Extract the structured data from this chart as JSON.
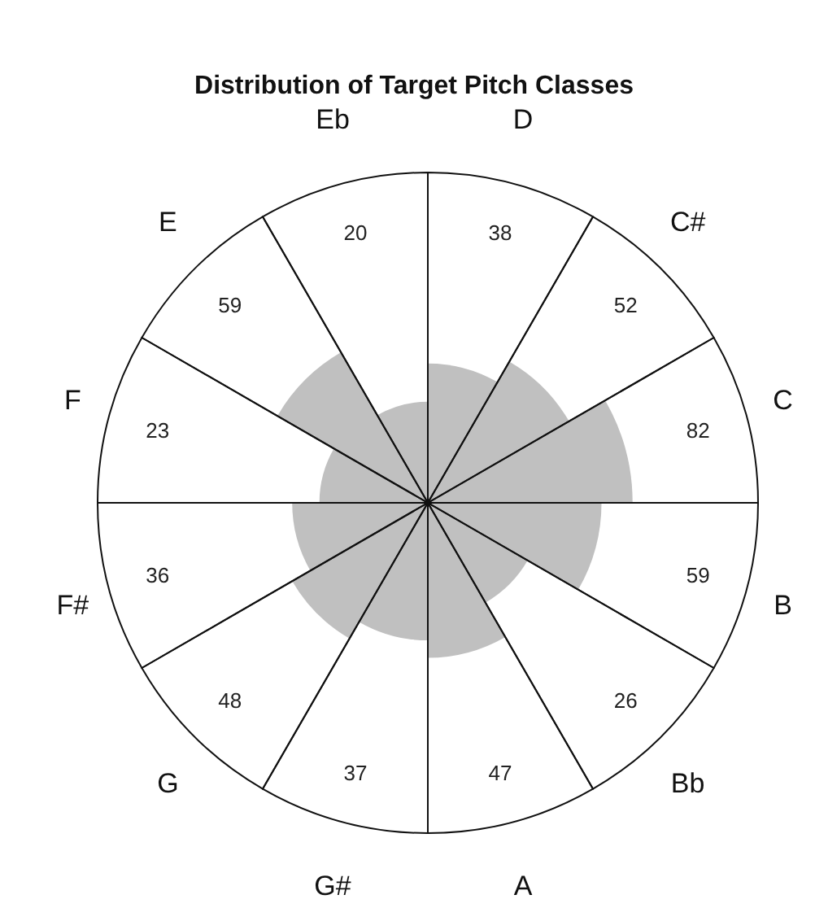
{
  "chart_data": {
    "type": "other",
    "title": "Distribution of Target Pitch Classes",
    "categories": [
      "D",
      "C#",
      "C",
      "B",
      "Bb",
      "A",
      "G#",
      "G",
      "F#",
      "F",
      "E",
      "Eb"
    ],
    "values": [
      38,
      52,
      82,
      59,
      26,
      47,
      37,
      48,
      36,
      23,
      59,
      20
    ],
    "color": "#c0c0c0",
    "data_labels": true
  }
}
